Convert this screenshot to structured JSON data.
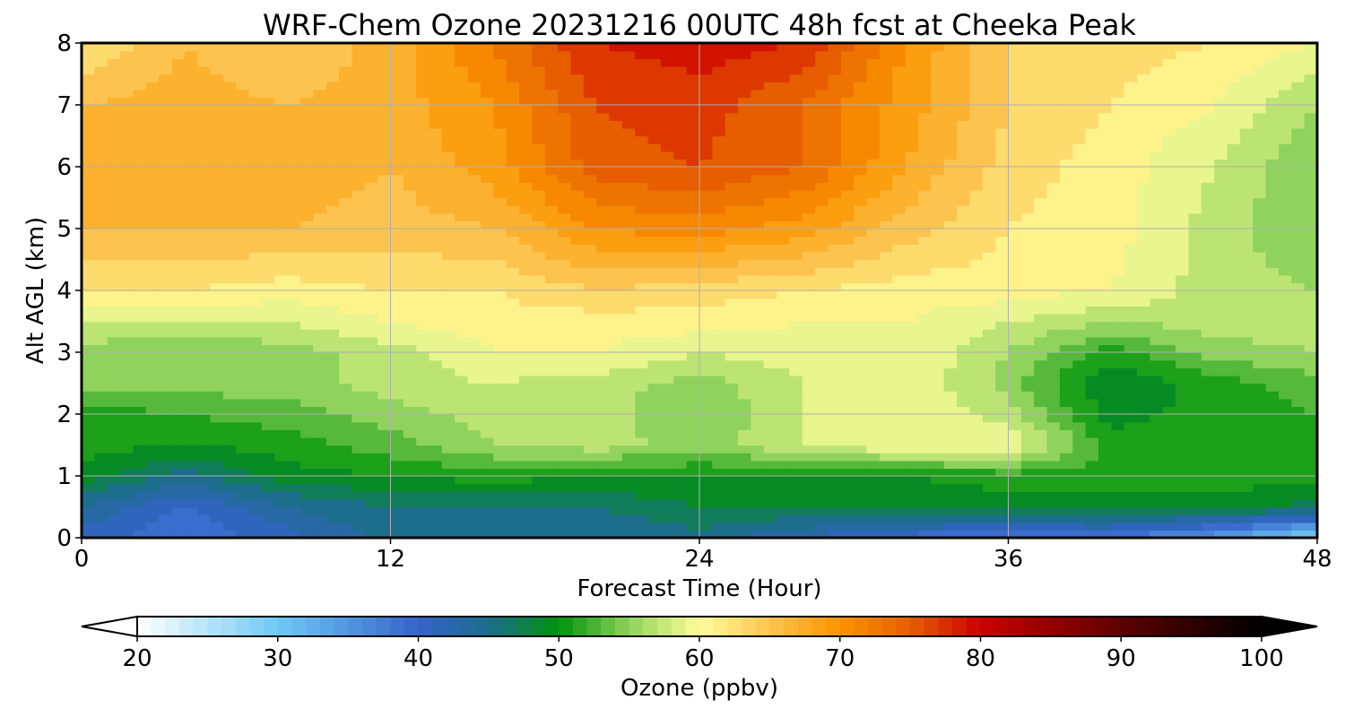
{
  "chart_data": {
    "type": "heatmap",
    "title": "WRF-Chem Ozone  20231216 00UTC 48h fcst at Cheeka Peak",
    "xlabel": "Forecast Time (Hour)",
    "ylabel": "Alt AGL (km)",
    "xlim": [
      0,
      48
    ],
    "ylim": [
      0,
      8
    ],
    "x_ticks": [
      0,
      12,
      24,
      36,
      48
    ],
    "y_ticks": [
      0,
      1,
      2,
      3,
      4,
      5,
      6,
      7,
      8
    ],
    "grid": true,
    "x_hours": [
      0,
      4,
      8,
      12,
      16,
      20,
      24,
      28,
      32,
      36,
      40,
      44,
      48
    ],
    "altitudes_km": [
      0,
      0.5,
      1,
      1.5,
      2,
      2.5,
      3,
      3.5,
      4,
      5,
      6,
      7,
      8
    ],
    "values_ppbv": [
      [
        41,
        38,
        41,
        45,
        45,
        44,
        45,
        42,
        39,
        37,
        38,
        34,
        28
      ],
      [
        44,
        40,
        44,
        46,
        46,
        46,
        48,
        48,
        48,
        49,
        49,
        49,
        47
      ],
      [
        49,
        45,
        49,
        50,
        51,
        50,
        50,
        50,
        50,
        51,
        51,
        51,
        51
      ],
      [
        51,
        50,
        51,
        53,
        56,
        57,
        55,
        58,
        60,
        60,
        51,
        52,
        52
      ],
      [
        51,
        52,
        53,
        55,
        57,
        57,
        54,
        58,
        60,
        57,
        49,
        51,
        52
      ],
      [
        55,
        55,
        55,
        57,
        58,
        57,
        55,
        58,
        60,
        55,
        48,
        51,
        53
      ],
      [
        55,
        54,
        55,
        57,
        60,
        60,
        58,
        59,
        60,
        56,
        51,
        55,
        56
      ],
      [
        58,
        58,
        58,
        60,
        61,
        61,
        61,
        60,
        60,
        58,
        56,
        57,
        57
      ],
      [
        62,
        62,
        61,
        62,
        62,
        64,
        63,
        62,
        61,
        61,
        60,
        57,
        56
      ],
      [
        66,
        66,
        66,
        65,
        66,
        70,
        71,
        69,
        65,
        62,
        61,
        57,
        54
      ],
      [
        67,
        67,
        67,
        66,
        69,
        75,
        76,
        74,
        68,
        63,
        61,
        58,
        54
      ],
      [
        66,
        67,
        66,
        67,
        70,
        76,
        77,
        74,
        69,
        64,
        62,
        60,
        56
      ],
      [
        62,
        66,
        64,
        67,
        72,
        78,
        79,
        78,
        70,
        64,
        63,
        62,
        60
      ]
    ],
    "colorbar": {
      "label": "Ozone  (ppbv)",
      "range": [
        20,
        100
      ],
      "ticks": [
        20,
        30,
        40,
        50,
        60,
        70,
        80,
        90,
        100
      ],
      "extend": "both",
      "color_stops": [
        {
          "v": 20,
          "c": "#ffffff"
        },
        {
          "v": 30,
          "c": "#6ec9f6"
        },
        {
          "v": 40,
          "c": "#3563c9"
        },
        {
          "v": 45,
          "c": "#1d6d8d"
        },
        {
          "v": 50,
          "c": "#00930a"
        },
        {
          "v": 55,
          "c": "#8fd35c"
        },
        {
          "v": 60,
          "c": "#fffd9a"
        },
        {
          "v": 65,
          "c": "#fcc44f"
        },
        {
          "v": 70,
          "c": "#fb9400"
        },
        {
          "v": 75,
          "c": "#e65e00"
        },
        {
          "v": 80,
          "c": "#cc0000"
        },
        {
          "v": 90,
          "c": "#5d0000"
        },
        {
          "v": 100,
          "c": "#000000"
        }
      ]
    }
  }
}
